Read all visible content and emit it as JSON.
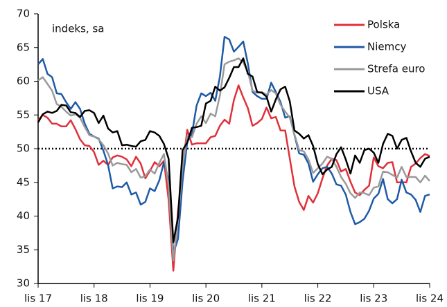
{
  "chart_data": {
    "type": "line",
    "annotation": "indeks, sa",
    "categories": [
      "lis 17",
      null,
      null,
      null,
      null,
      null,
      null,
      null,
      null,
      null,
      null,
      null,
      "lis 18",
      null,
      null,
      null,
      null,
      null,
      null,
      null,
      null,
      null,
      null,
      null,
      "lis 19",
      null,
      null,
      null,
      null,
      null,
      null,
      null,
      null,
      null,
      null,
      null,
      "lis 20",
      null,
      null,
      null,
      null,
      null,
      null,
      null,
      null,
      null,
      null,
      null,
      "lis 21",
      null,
      null,
      null,
      null,
      null,
      null,
      null,
      null,
      null,
      null,
      null,
      "lis 22",
      null,
      null,
      null,
      null,
      null,
      null,
      null,
      null,
      null,
      null,
      null,
      "lis 23",
      null,
      null,
      null,
      null,
      null,
      null,
      null,
      null,
      null,
      null,
      null,
      "lis 24"
    ],
    "series": [
      {
        "name": "Polska",
        "color": "#e0303a",
        "values": [
          54.2,
          55.0,
          54.6,
          53.7,
          53.7,
          53.3,
          53.3,
          54.2,
          52.9,
          51.4,
          50.5,
          50.4,
          49.5,
          47.6,
          48.2,
          47.6,
          48.7,
          49.0,
          48.8,
          48.4,
          47.4,
          48.8,
          47.8,
          45.6,
          46.7,
          48.0,
          47.4,
          48.2,
          42.4,
          31.9,
          40.6,
          47.2,
          52.8,
          50.6,
          50.8,
          50.8,
          50.8,
          51.7,
          51.9,
          53.4,
          54.3,
          53.7,
          57.2,
          59.4,
          57.6,
          56.0,
          53.4,
          53.8,
          54.4,
          56.1,
          54.5,
          54.7,
          52.7,
          52.7,
          48.5,
          44.4,
          42.1,
          40.9,
          43.0,
          42.0,
          43.4,
          45.6,
          47.5,
          48.5,
          48.3,
          46.6,
          47.0,
          45.1,
          43.5,
          43.1,
          43.9,
          44.5,
          48.7,
          47.4,
          47.1,
          47.9,
          48.0,
          45.0,
          45.0,
          45.0,
          47.3,
          47.8,
          48.6,
          49.2,
          48.9
        ]
      },
      {
        "name": "Niemcy",
        "color": "#1f5aa6",
        "values": [
          62.5,
          63.3,
          61.1,
          60.6,
          58.2,
          58.1,
          56.9,
          55.9,
          56.9,
          55.9,
          53.7,
          52.2,
          51.8,
          51.5,
          49.7,
          47.6,
          44.1,
          44.4,
          44.3,
          45.0,
          43.2,
          43.5,
          41.7,
          42.1,
          44.1,
          43.7,
          45.3,
          48.0,
          45.4,
          34.5,
          36.6,
          45.2,
          51.0,
          52.2,
          56.4,
          58.2,
          57.8,
          58.3,
          57.1,
          60.7,
          66.6,
          66.2,
          64.4,
          65.1,
          65.9,
          62.6,
          58.4,
          57.8,
          57.4,
          57.4,
          59.8,
          58.4,
          56.9,
          54.6,
          54.8,
          52.0,
          49.3,
          49.1,
          47.8,
          45.1,
          46.2,
          47.1,
          47.3,
          46.3,
          44.7,
          44.5,
          43.2,
          40.6,
          38.8,
          39.1,
          39.6,
          40.8,
          42.6,
          43.3,
          45.5,
          42.5,
          41.9,
          42.5,
          45.4,
          43.5,
          43.2,
          42.4,
          40.6,
          43.0,
          43.2
        ]
      },
      {
        "name": "Strefa euro",
        "color": "#9a9a9a",
        "values": [
          60.1,
          60.6,
          59.6,
          58.6,
          56.6,
          56.2,
          55.5,
          54.9,
          55.1,
          54.6,
          53.2,
          52.0,
          51.8,
          51.4,
          50.5,
          49.3,
          47.5,
          47.9,
          47.7,
          47.6,
          46.5,
          47.0,
          45.7,
          45.9,
          46.9,
          46.3,
          47.9,
          49.2,
          44.5,
          33.4,
          39.4,
          47.4,
          51.8,
          51.7,
          53.7,
          54.8,
          53.8,
          55.2,
          54.8,
          57.9,
          62.5,
          62.9,
          63.1,
          63.4,
          62.8,
          61.4,
          58.6,
          58.3,
          58.4,
          58.0,
          58.7,
          58.2,
          56.5,
          55.5,
          54.6,
          52.1,
          49.8,
          49.6,
          48.4,
          46.4,
          47.1,
          47.8,
          48.8,
          48.5,
          47.3,
          45.8,
          44.8,
          43.4,
          42.7,
          43.5,
          43.4,
          43.1,
          44.2,
          44.4,
          46.6,
          46.5,
          46.1,
          45.7,
          47.3,
          45.8,
          45.8,
          45.8,
          45.0,
          46.0,
          45.2
        ]
      },
      {
        "name": "USA",
        "color": "#000000",
        "values": [
          53.9,
          55.1,
          55.5,
          55.3,
          55.6,
          56.5,
          56.4,
          55.4,
          55.3,
          54.7,
          55.6,
          55.7,
          55.3,
          53.8,
          54.9,
          53.0,
          52.4,
          52.6,
          50.5,
          50.6,
          50.4,
          50.3,
          51.1,
          51.3,
          52.6,
          52.4,
          51.9,
          50.7,
          48.5,
          36.1,
          39.8,
          49.8,
          50.9,
          53.1,
          53.2,
          53.4,
          56.7,
          57.1,
          59.2,
          58.6,
          59.1,
          60.5,
          62.1,
          62.1,
          63.4,
          61.1,
          60.7,
          58.4,
          58.3,
          57.7,
          55.5,
          57.3,
          58.8,
          59.2,
          57.0,
          52.7,
          52.2,
          51.5,
          52.0,
          50.4,
          47.7,
          46.2,
          46.9,
          47.3,
          49.2,
          50.2,
          48.4,
          46.3,
          49.0,
          47.9,
          49.8,
          50.0,
          49.4,
          47.9,
          50.7,
          52.2,
          51.9,
          50.0,
          51.3,
          51.6,
          49.6,
          47.9,
          47.3,
          48.5,
          48.8
        ]
      }
    ],
    "ylim": [
      30,
      70
    ],
    "yticks": [
      30,
      35,
      40,
      45,
      50,
      55,
      60,
      65,
      70
    ],
    "reference_line": 50,
    "legend": "top-right"
  }
}
